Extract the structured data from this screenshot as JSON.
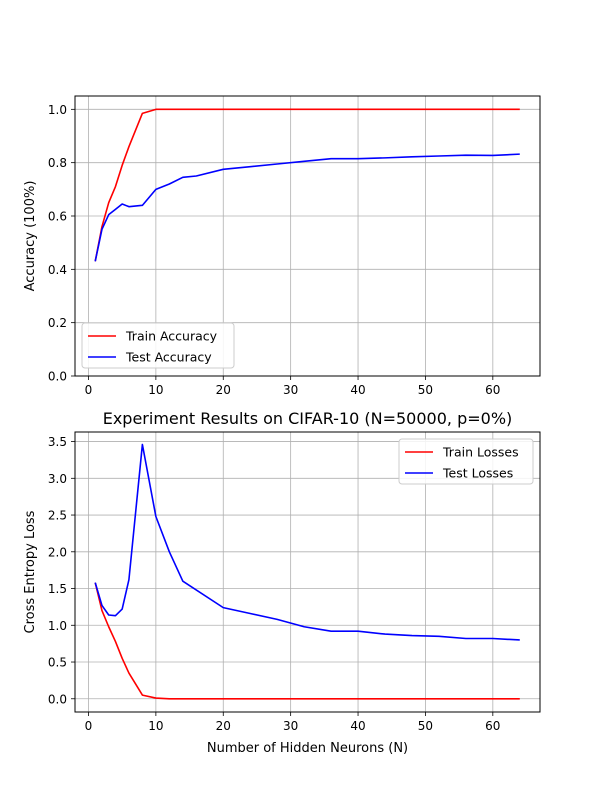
{
  "chart_data": [
    {
      "type": "line",
      "title": "",
      "xlabel": "",
      "ylabel": "Accuracy (100%)",
      "xlim": [
        -2,
        67
      ],
      "ylim": [
        0.0,
        1.05
      ],
      "xticks": [
        0,
        10,
        20,
        30,
        40,
        50,
        60
      ],
      "yticks": [
        0.0,
        0.2,
        0.4,
        0.6,
        0.8,
        1.0
      ],
      "xtick_labels": [
        "0",
        "10",
        "20",
        "30",
        "40",
        "50",
        "60"
      ],
      "ytick_labels": [
        "0.0",
        "0.2",
        "0.4",
        "0.6",
        "0.8",
        "1.0"
      ],
      "grid": true,
      "legend_position": "lower-left",
      "series": [
        {
          "name": "Train Accuracy",
          "color": "#ff0000",
          "x": [
            1,
            2,
            3,
            4,
            5,
            6,
            8,
            10,
            12,
            14,
            16,
            20,
            24,
            28,
            32,
            36,
            40,
            44,
            48,
            52,
            56,
            60,
            64
          ],
          "y": [
            0.43,
            0.56,
            0.65,
            0.71,
            0.79,
            0.86,
            0.985,
            1.0,
            1.0,
            1.0,
            1.0,
            1.0,
            1.0,
            1.0,
            1.0,
            1.0,
            1.0,
            1.0,
            1.0,
            1.0,
            1.0,
            1.0,
            1.0
          ]
        },
        {
          "name": "Test Accuracy",
          "color": "#0000ff",
          "x": [
            1,
            2,
            3,
            4,
            5,
            6,
            8,
            10,
            12,
            14,
            16,
            20,
            24,
            28,
            32,
            36,
            40,
            44,
            48,
            52,
            56,
            60,
            64
          ],
          "y": [
            0.43,
            0.55,
            0.605,
            0.625,
            0.645,
            0.635,
            0.64,
            0.7,
            0.72,
            0.745,
            0.75,
            0.775,
            0.785,
            0.795,
            0.805,
            0.815,
            0.815,
            0.818,
            0.822,
            0.825,
            0.828,
            0.827,
            0.832
          ]
        }
      ]
    },
    {
      "type": "line",
      "title": "Experiment Results on CIFAR-10 (N=50000, p=0%)",
      "xlabel": "Number of Hidden Neurons (N)",
      "ylabel": "Cross Entropy Loss",
      "xlim": [
        -2,
        67
      ],
      "ylim": [
        -0.18,
        3.63
      ],
      "xticks": [
        0,
        10,
        20,
        30,
        40,
        50,
        60
      ],
      "yticks": [
        0.0,
        0.5,
        1.0,
        1.5,
        2.0,
        2.5,
        3.0,
        3.5
      ],
      "xtick_labels": [
        "0",
        "10",
        "20",
        "30",
        "40",
        "50",
        "60"
      ],
      "ytick_labels": [
        "0.0",
        "0.5",
        "1.0",
        "1.5",
        "2.0",
        "2.5",
        "3.0",
        "3.5"
      ],
      "grid": true,
      "legend_position": "upper-right",
      "series": [
        {
          "name": "Train Losses",
          "color": "#ff0000",
          "x": [
            1,
            2,
            3,
            4,
            5,
            6,
            8,
            10,
            12,
            14,
            16,
            20,
            24,
            28,
            32,
            36,
            40,
            44,
            48,
            52,
            56,
            60,
            64
          ],
          "y": [
            1.58,
            1.2,
            0.98,
            0.78,
            0.55,
            0.35,
            0.05,
            0.01,
            0.0,
            0.0,
            0.0,
            0.0,
            0.0,
            0.0,
            0.0,
            0.0,
            0.0,
            0.0,
            0.0,
            0.0,
            0.0,
            0.0,
            0.0
          ]
        },
        {
          "name": "Test Losses",
          "color": "#0000ff",
          "x": [
            1,
            2,
            3,
            4,
            5,
            6,
            8,
            10,
            12,
            14,
            20,
            24,
            28,
            32,
            36,
            40,
            44,
            48,
            52,
            56,
            60,
            64
          ],
          "y": [
            1.58,
            1.27,
            1.14,
            1.13,
            1.22,
            1.62,
            3.46,
            2.48,
            2.0,
            1.6,
            1.24,
            1.16,
            1.08,
            0.98,
            0.92,
            0.92,
            0.88,
            0.86,
            0.85,
            0.82,
            0.82,
            0.8
          ]
        }
      ]
    }
  ]
}
